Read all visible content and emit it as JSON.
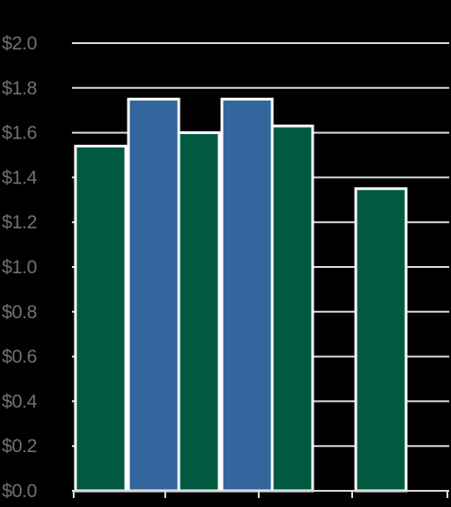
{
  "chart_data": {
    "type": "bar",
    "title": "",
    "xlabel": "",
    "ylabel": "",
    "ylim": [
      0,
      2.0
    ],
    "yticks": [
      "$0.0",
      "$0.2",
      "$0.4",
      "$0.6",
      "$0.8",
      "$1.0",
      "$1.2",
      "$1.4",
      "$1.6",
      "$1.8",
      "$2.0"
    ],
    "grid": true,
    "legend": "none",
    "categories": [
      "",
      "",
      "",
      ""
    ],
    "series": [
      {
        "color": "#005a41",
        "values": [
          1.54,
          1.6,
          1.63,
          1.35
        ]
      },
      {
        "color": "#33669c",
        "values": [
          1.75,
          1.75,
          null,
          null
        ]
      }
    ]
  },
  "colors": {
    "background": "#000000",
    "gridline": "#dcdcdc",
    "bar_outline": "#ffffff",
    "tick_text": "#707070"
  }
}
